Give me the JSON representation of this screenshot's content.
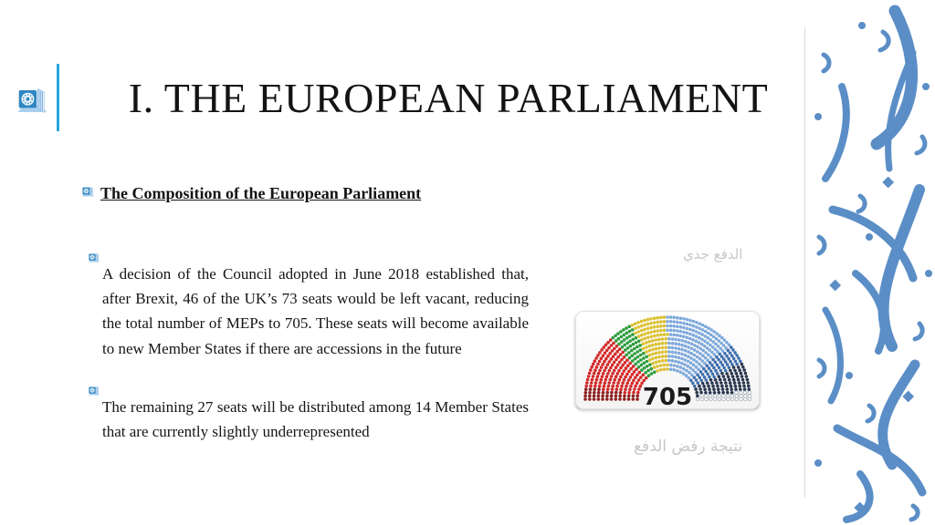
{
  "slide": {
    "title": "I. THE EUROPEAN PARLIAMENT",
    "section_heading": "The Composition of the European Parliament",
    "bullets": [
      "A decision of the Council adopted in June 2018 established that, after Brexit, 46 of the UK’s 73 seats would be left vacant, reducing the total number of MEPs to 705. These seats will become available to new Member States if there are accessions in the future",
      "The remaining 27 seats will be distributed among 14 Member States that are currently slightly underrepresented"
    ],
    "watermark_top": "الدفع جدي",
    "watermark_bottom": "نتيجة رفض الدفع"
  },
  "colors": {
    "accent_line": "#2ba7df",
    "calligraphy": "#5b8ec6",
    "watermark": "#c7c7c7"
  },
  "chart_data": {
    "type": "parliament-hemicycle",
    "title": "European Parliament seat composition",
    "total_seats": 705,
    "center_label": "705",
    "legend_position": "none",
    "layout": {
      "rows": 13,
      "inner_radius": 33,
      "outer_radius": 90,
      "start_angle_deg": 180,
      "end_angle_deg": 0
    },
    "series": [
      {
        "name": "dark-red-group",
        "seats": 39,
        "color": "#8e1f1f"
      },
      {
        "name": "red-group",
        "seats": 148,
        "color": "#d32a2a"
      },
      {
        "name": "green-group",
        "seats": 67,
        "color": "#2e9e3f"
      },
      {
        "name": "yellow-group",
        "seats": 98,
        "color": "#dcc133"
      },
      {
        "name": "light-blue-group",
        "seats": 187,
        "color": "#7fa9db"
      },
      {
        "name": "medium-blue-group",
        "seats": 61,
        "color": "#3f6fae"
      },
      {
        "name": "dark-navy-group",
        "seats": 76,
        "color": "#2a3850"
      },
      {
        "name": "white-outlined-group",
        "seats": 29,
        "color": "#ffffff",
        "stroke": "#9aa4ae"
      }
    ]
  }
}
